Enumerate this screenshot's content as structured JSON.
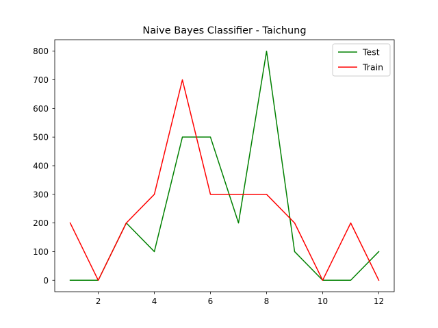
{
  "chart_data": {
    "type": "line",
    "title": "Naive Bayes Classifier - Taichung",
    "xlabel": "",
    "ylabel": "",
    "x": [
      1,
      2,
      3,
      4,
      5,
      6,
      7,
      8,
      9,
      10,
      11,
      12
    ],
    "xlim": [
      0.45,
      12.55
    ],
    "ylim": [
      -40,
      840
    ],
    "xticks": [
      2,
      4,
      6,
      8,
      10,
      12
    ],
    "yticks": [
      0,
      100,
      200,
      300,
      400,
      500,
      600,
      700,
      800
    ],
    "grid": false,
    "legend_position": "top-right",
    "series": [
      {
        "name": "Test",
        "color": "#008000",
        "values": [
          0,
          0,
          200,
          100,
          500,
          500,
          200,
          800,
          100,
          0,
          0,
          100
        ]
      },
      {
        "name": "Train",
        "color": "#ff0000",
        "values": [
          200,
          0,
          200,
          300,
          700,
          300,
          300,
          300,
          200,
          0,
          200,
          0
        ]
      }
    ]
  }
}
